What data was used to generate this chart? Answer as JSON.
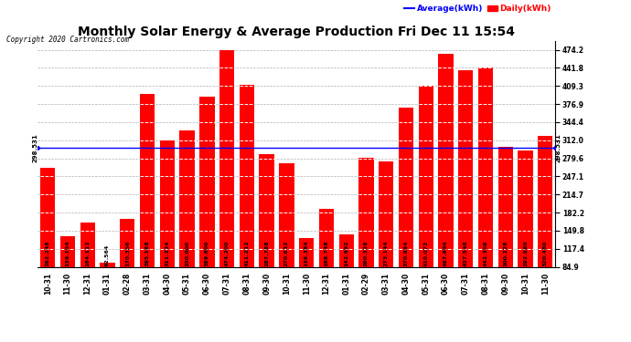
{
  "title": "Monthly Solar Energy & Average Production Fri Dec 11 15:54",
  "copyright": "Copyright 2020 Cartronics.com",
  "legend_avg": "Average(kWh)",
  "legend_daily": "Daily(kWh)",
  "average_line": 298.531,
  "categories": [
    "10-31",
    "11-30",
    "12-31",
    "01-31",
    "02-28",
    "03-31",
    "04-30",
    "05-31",
    "06-30",
    "07-31",
    "08-31",
    "09-30",
    "10-31",
    "11-30",
    "12-31",
    "01-31",
    "02-29",
    "03-31",
    "04-30",
    "05-31",
    "06-30",
    "07-31",
    "08-31",
    "09-30",
    "10-31",
    "11-30"
  ],
  "values": [
    262.248,
    139.104,
    164.112,
    92.564,
    170.356,
    395.168,
    311.224,
    330.0,
    389.8,
    474.2,
    411.212,
    287.788,
    270.632,
    136.384,
    188.748,
    142.692,
    280.328,
    273.144,
    370.984,
    410.072,
    467.604,
    437.548,
    442.308,
    300.228,
    292.88,
    320.48
  ],
  "bar_color": "#ff0000",
  "avg_line_color": "#0000ff",
  "background_color": "#ffffff",
  "grid_color": "#b0b0b0",
  "ylim_min": 84.9,
  "ylim_max": 490.0,
  "yticks": [
    84.9,
    117.4,
    149.8,
    182.2,
    214.7,
    247.1,
    279.6,
    312.0,
    344.4,
    376.9,
    409.3,
    441.8,
    474.2
  ],
  "title_fontsize": 10,
  "tick_fontsize": 5.5,
  "value_fontsize": 4.5,
  "copyright_fontsize": 5.5,
  "legend_fontsize": 6.5
}
